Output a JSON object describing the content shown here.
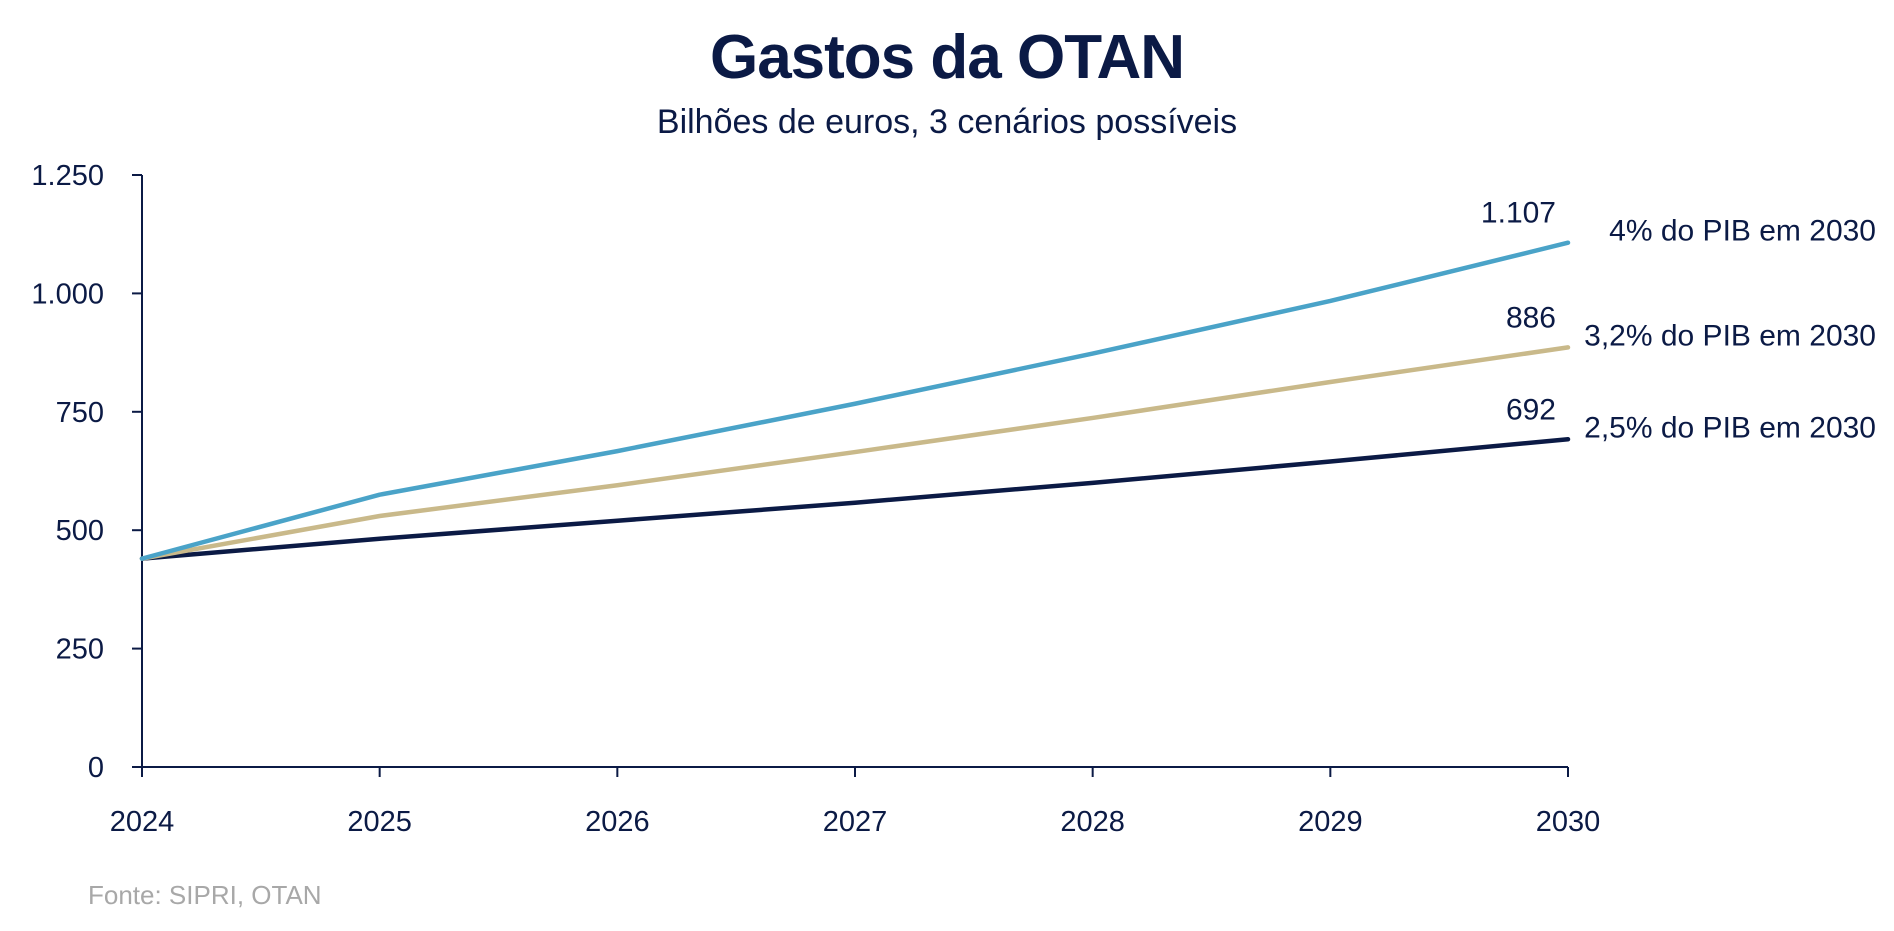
{
  "chart_data": {
    "type": "line",
    "title": "Gastos da OTAN",
    "subtitle": "Bilhões de euros, 3 cenários possíveis",
    "x": [
      2024,
      2025,
      2026,
      2027,
      2028,
      2029,
      2030
    ],
    "x_tick_labels": [
      "2024",
      "2025",
      "2026",
      "2027",
      "2028",
      "2029",
      "2030"
    ],
    "ylim": [
      0,
      1250
    ],
    "y_ticks": [
      0,
      250,
      500,
      750,
      1000,
      1250
    ],
    "y_tick_labels": [
      "0",
      "250",
      "500",
      "750",
      "1.000",
      "1.250"
    ],
    "grid": false,
    "series": [
      {
        "name": "4% do PIB em 2030",
        "color": "#4aa3c8",
        "values": [
          440,
          575,
          667,
          767,
          873,
          984,
          1107
        ],
        "end_label": "1.107"
      },
      {
        "name": "3,2% do PIB em 2030",
        "color": "#c9b98a",
        "values": [
          440,
          530,
          595,
          665,
          737,
          813,
          886
        ],
        "end_label": "886"
      },
      {
        "name": "2,5% do PIB em 2030",
        "color": "#0b1a45",
        "values": [
          440,
          482,
          520,
          558,
          600,
          645,
          692
        ],
        "end_label": "692"
      }
    ],
    "axis_color": "#0b1a45"
  },
  "source": "Fonte: SIPRI, OTAN"
}
